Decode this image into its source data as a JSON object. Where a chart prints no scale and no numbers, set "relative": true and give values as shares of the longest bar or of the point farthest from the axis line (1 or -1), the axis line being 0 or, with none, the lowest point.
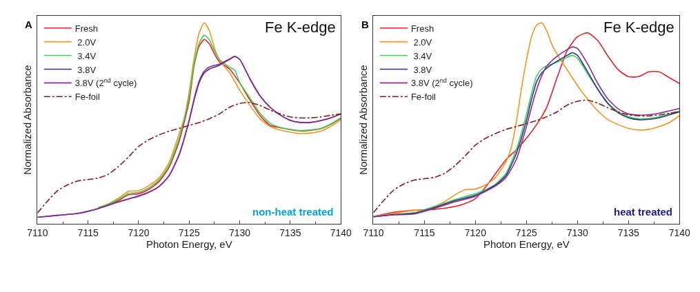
{
  "chart_data": [
    {
      "type": "line",
      "relative": true,
      "xlabel": "Photon Energy, eV",
      "ylabel": "Normalized Absorbance",
      "xlim": [
        7110,
        7140
      ],
      "xticks": [
        7110,
        7115,
        7120,
        7125,
        7130,
        7135,
        7140
      ],
      "legend": "top left",
      "annotations": [
        "A",
        "Fe K-edge",
        "non-heat treated"
      ],
      "series": [
        {
          "name": "Fresh",
          "color": "#ee1c25",
          "x": [
            7116,
            7117,
            7118,
            7119,
            7120,
            7121,
            7122,
            7123,
            7124,
            7125,
            7125.5,
            7126,
            7126.5,
            7127,
            7127.5,
            7128,
            7129,
            7130,
            7131,
            7132,
            7133,
            7134,
            7136,
            7138,
            7139,
            7140
          ],
          "values": [
            0.078,
            0.095,
            0.116,
            0.145,
            0.15,
            0.172,
            0.21,
            0.28,
            0.41,
            0.61,
            0.79,
            0.885,
            0.917,
            0.895,
            0.845,
            0.805,
            0.77,
            0.7,
            0.617,
            0.54,
            0.49,
            0.478,
            0.462,
            0.473,
            0.495,
            0.525
          ]
        },
        {
          "name": " 2.0V",
          "color": "#f7941d",
          "x": [
            7116,
            7117,
            7118,
            7119,
            7120,
            7121,
            7122,
            7123,
            7124,
            7124.5,
            7125,
            7125.5,
            7126,
            7126.5,
            7127,
            7127.5,
            7128,
            7129,
            7130,
            7131,
            7132,
            7133,
            7134,
            7136,
            7137,
            7138,
            7139,
            7140
          ],
          "values": [
            0.081,
            0.1,
            0.128,
            0.162,
            0.166,
            0.19,
            0.228,
            0.304,
            0.447,
            0.523,
            0.656,
            0.827,
            0.951,
            1.0,
            0.96,
            0.875,
            0.813,
            0.751,
            0.665,
            0.589,
            0.523,
            0.485,
            0.466,
            0.449,
            0.452,
            0.461,
            0.485,
            0.518
          ]
        },
        {
          "name": " 3.4V",
          "color": "#39d353",
          "x": [
            7116,
            7117,
            7118,
            7119,
            7120,
            7121,
            7122,
            7123,
            7124,
            7125,
            7125.5,
            7126,
            7126.5,
            7127,
            7127.5,
            7128,
            7129,
            7129.5,
            7130,
            7131,
            7132,
            7133,
            7134,
            7136,
            7138,
            7139,
            7140
          ],
          "values": [
            0.08,
            0.098,
            0.122,
            0.152,
            0.157,
            0.18,
            0.218,
            0.29,
            0.425,
            0.63,
            0.8,
            0.9,
            0.938,
            0.915,
            0.86,
            0.818,
            0.779,
            0.765,
            0.703,
            0.627,
            0.551,
            0.5,
            0.48,
            0.464,
            0.475,
            0.497,
            0.528
          ]
        },
        {
          "name": " 3.8V",
          "color": "#2e3192",
          "x": [
            7110,
            7112,
            7114,
            7116,
            7118,
            7119,
            7120,
            7121,
            7122,
            7123,
            7124,
            7125,
            7125.5,
            7126,
            7126.5,
            7127,
            7128,
            7129,
            7129.5,
            7130,
            7131,
            7132,
            7133,
            7134,
            7135,
            7136,
            7137,
            7138,
            7139,
            7140
          ],
          "values": [
            0.033,
            0.043,
            0.052,
            0.076,
            0.109,
            0.124,
            0.138,
            0.157,
            0.185,
            0.238,
            0.342,
            0.513,
            0.618,
            0.703,
            0.751,
            0.77,
            0.789,
            0.818,
            0.832,
            0.818,
            0.722,
            0.637,
            0.58,
            0.542,
            0.515,
            0.504,
            0.504,
            0.513,
            0.527,
            0.547
          ]
        },
        {
          "name": "3.8V (2$^{nd}$ cycle)",
          "color": "#92278f",
          "x": [
            7110,
            7112,
            7114,
            7116,
            7118,
            7119,
            7120,
            7121,
            7122,
            7123,
            7124,
            7125,
            7125.5,
            7126,
            7126.5,
            7127,
            7128,
            7129,
            7129.5,
            7130,
            7131,
            7132,
            7133,
            7134,
            7135,
            7136,
            7137,
            7138,
            7139,
            7140
          ],
          "values": [
            0.033,
            0.043,
            0.053,
            0.077,
            0.11,
            0.125,
            0.139,
            0.158,
            0.186,
            0.24,
            0.345,
            0.517,
            0.625,
            0.712,
            0.76,
            0.78,
            0.795,
            0.82,
            0.833,
            0.818,
            0.722,
            0.637,
            0.58,
            0.542,
            0.515,
            0.505,
            0.505,
            0.514,
            0.528,
            0.547
          ]
        },
        {
          "name": "Fe-foil",
          "color": "#8b1a1a",
          "line_style": "dashdot",
          "x": [
            7110,
            7111,
            7112,
            7113,
            7114,
            7115,
            7116,
            7117,
            7118,
            7119,
            7120,
            7121,
            7122,
            7123,
            7124,
            7125,
            7126,
            7127,
            7128,
            7129,
            7130,
            7131,
            7132,
            7133,
            7134,
            7135,
            7136,
            7137,
            7138,
            7139,
            7140
          ],
          "values": [
            0.055,
            0.114,
            0.166,
            0.195,
            0.214,
            0.221,
            0.228,
            0.247,
            0.285,
            0.333,
            0.385,
            0.418,
            0.442,
            0.461,
            0.475,
            0.49,
            0.504,
            0.523,
            0.547,
            0.58,
            0.599,
            0.604,
            0.589,
            0.566,
            0.547,
            0.532,
            0.527,
            0.527,
            0.532,
            0.54,
            0.547
          ]
        }
      ]
    },
    {
      "type": "line",
      "relative": true,
      "xlabel": "Photon Energy, eV",
      "ylabel": "Normalized Absorbance",
      "xlim": [
        7110,
        7140
      ],
      "xticks": [
        7110,
        7115,
        7120,
        7125,
        7130,
        7135,
        7140
      ],
      "legend": "top left",
      "annotations": [
        "B",
        "Fe K-edge",
        "heat treated"
      ],
      "series": [
        {
          "name": "Fresh",
          "color": "#ee1c25",
          "x": [
            7110,
            7112,
            7114,
            7116,
            7118,
            7119,
            7120,
            7121,
            7122,
            7123,
            7124,
            7125,
            7126,
            7127,
            7128,
            7129,
            7130,
            7131,
            7132,
            7133,
            7134,
            7135,
            7136,
            7137,
            7138,
            7139,
            7140
          ],
          "values": [
            0.037,
            0.058,
            0.068,
            0.073,
            0.087,
            0.102,
            0.126,
            0.184,
            0.252,
            0.32,
            0.368,
            0.426,
            0.494,
            0.581,
            0.727,
            0.862,
            0.93,
            0.95,
            0.911,
            0.833,
            0.766,
            0.732,
            0.732,
            0.756,
            0.756,
            0.727,
            0.698
          ]
        },
        {
          "name": " 2.0V",
          "color": "#f7941d",
          "x": [
            7110,
            7112,
            7114,
            7115,
            7116,
            7117,
            7118,
            7119,
            7120,
            7121,
            7122,
            7123,
            7123.5,
            7124,
            7124.5,
            7125,
            7125.5,
            7126,
            7126.5,
            7127,
            7127.5,
            7128,
            7129,
            7130,
            7131,
            7132,
            7133,
            7134,
            7135,
            7136,
            7137,
            7138,
            7139,
            7140
          ],
          "values": [
            0.037,
            0.053,
            0.068,
            0.068,
            0.087,
            0.111,
            0.145,
            0.17,
            0.174,
            0.194,
            0.233,
            0.31,
            0.378,
            0.504,
            0.669,
            0.814,
            0.93,
            0.988,
            1.0,
            0.959,
            0.891,
            0.843,
            0.766,
            0.688,
            0.62,
            0.562,
            0.518,
            0.494,
            0.475,
            0.467,
            0.47,
            0.484,
            0.504,
            0.538
          ]
        },
        {
          "name": " 3.4V",
          "color": "#39d353",
          "x": [
            7110,
            7112,
            7114,
            7116,
            7118,
            7119,
            7120,
            7121,
            7122,
            7123,
            7124,
            7125,
            7125.5,
            7126,
            7126.5,
            7127,
            7128,
            7129,
            7129.5,
            7130,
            7131,
            7132,
            7133,
            7134,
            7135,
            7136,
            7137,
            7138,
            7139,
            7140
          ],
          "values": [
            0.036,
            0.048,
            0.056,
            0.087,
            0.121,
            0.136,
            0.15,
            0.17,
            0.199,
            0.252,
            0.368,
            0.543,
            0.649,
            0.736,
            0.77,
            0.785,
            0.804,
            0.828,
            0.838,
            0.824,
            0.746,
            0.669,
            0.601,
            0.557,
            0.533,
            0.523,
            0.525,
            0.533,
            0.547,
            0.562
          ]
        },
        {
          "name": " 3.8V",
          "color": "#2e3192",
          "x": [
            7110,
            7112,
            7114,
            7116,
            7118,
            7120,
            7122,
            7123,
            7124,
            7125,
            7125.5,
            7126,
            7126.5,
            7127,
            7128,
            7129,
            7129.5,
            7130,
            7131,
            7132,
            7133,
            7134,
            7135,
            7136,
            7137,
            7138,
            7139,
            7140
          ],
          "values": [
            0.036,
            0.047,
            0.053,
            0.082,
            0.116,
            0.143,
            0.194,
            0.242,
            0.349,
            0.514,
            0.62,
            0.707,
            0.751,
            0.775,
            0.809,
            0.838,
            0.851,
            0.838,
            0.756,
            0.669,
            0.597,
            0.552,
            0.528,
            0.518,
            0.52,
            0.528,
            0.542,
            0.557
          ]
        },
        {
          "name": "3.8V (2$^{nd}$ cycle)",
          "color": "#92278f",
          "x": [
            7110,
            7112,
            7114,
            7116,
            7118,
            7120,
            7122,
            7123,
            7124,
            7125,
            7125.5,
            7126,
            7126.5,
            7127,
            7128,
            7129,
            7129.5,
            7130,
            7131,
            7132,
            7133,
            7134,
            7135,
            7136,
            7137,
            7138,
            7139,
            7140
          ],
          "values": [
            0.035,
            0.045,
            0.05,
            0.078,
            0.11,
            0.138,
            0.19,
            0.232,
            0.32,
            0.484,
            0.581,
            0.668,
            0.736,
            0.785,
            0.833,
            0.867,
            0.88,
            0.872,
            0.795,
            0.698,
            0.62,
            0.572,
            0.547,
            0.541,
            0.543,
            0.55,
            0.562,
            0.574
          ]
        },
        {
          "name": "Fe-foil",
          "color": "#8b1a1a",
          "line_style": "dashdot",
          "x": [
            7110,
            7111,
            7112,
            7113,
            7114,
            7115,
            7116,
            7117,
            7118,
            7119,
            7120,
            7121,
            7122,
            7123,
            7124,
            7125,
            7126,
            7127,
            7128,
            7129,
            7130,
            7131,
            7132,
            7133,
            7134,
            7135,
            7136,
            7137,
            7138,
            7139,
            7140
          ],
          "values": [
            0.056,
            0.116,
            0.169,
            0.199,
            0.218,
            0.225,
            0.232,
            0.252,
            0.29,
            0.339,
            0.392,
            0.426,
            0.45,
            0.47,
            0.484,
            0.499,
            0.514,
            0.533,
            0.557,
            0.591,
            0.61,
            0.615,
            0.6,
            0.577,
            0.557,
            0.542,
            0.537,
            0.537,
            0.542,
            0.55,
            0.557
          ]
        }
      ]
    }
  ]
}
